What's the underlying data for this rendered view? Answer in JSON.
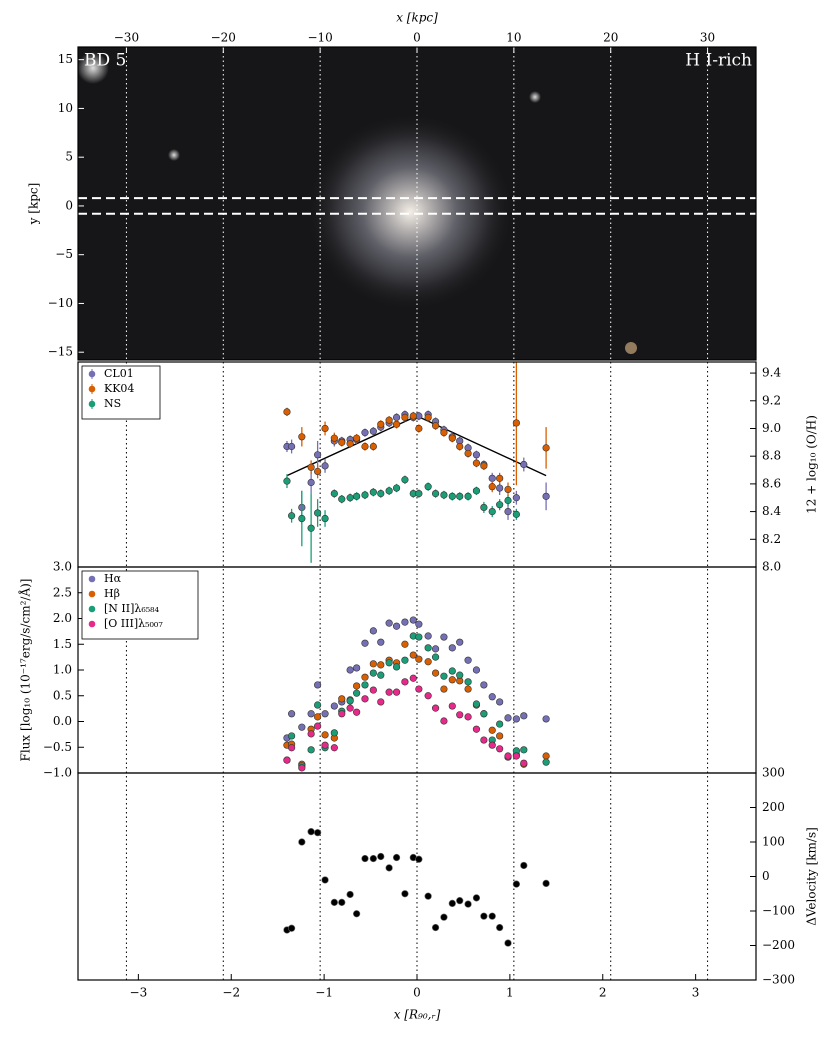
{
  "chart_data": [
    {
      "type": "image",
      "xlabel": "x [kpc]",
      "ylabel": "y [kpc]",
      "annotations": [
        "BD 5",
        "H I-rich"
      ],
      "xlim": [
        -35,
        35
      ],
      "xticks": [
        {
          "value": -30,
          "label": "−30"
        },
        {
          "value": -20,
          "label": "−20"
        },
        {
          "value": -10,
          "label": "−10"
        },
        0,
        10,
        20,
        30
      ],
      "ylim": [
        -15.8,
        16.3
      ],
      "yticks": [
        {
          "value": -15,
          "label": "−15"
        },
        {
          "value": -10,
          "label": "−10"
        },
        {
          "value": -5,
          "label": "−5"
        },
        0,
        5,
        10,
        15
      ],
      "slit_y": [
        -0.8,
        0.8
      ]
    },
    {
      "type": "errorbar",
      "ylabel": "12 + log₁₀ (O/H)",
      "legend": "upper left",
      "xlim": [
        -3.65,
        3.65
      ],
      "ylim": [
        8.0,
        9.48
      ],
      "yticks": [
        {
          "value": 8,
          "label": "8.0"
        },
        8.2,
        8.4,
        8.6,
        8.8,
        {
          "value": 9,
          "label": "9.0"
        },
        9.2,
        9.4
      ],
      "x": [
        -1.4,
        -1.35,
        -1.24,
        -1.14,
        -1.07,
        -0.99,
        -0.89,
        -0.81,
        -0.72,
        -0.65,
        -0.56,
        -0.47,
        -0.39,
        -0.3,
        -0.22,
        -0.13,
        -0.04,
        0.02,
        0.12,
        0.2,
        0.29,
        0.38,
        0.46,
        0.55,
        0.64,
        0.72,
        0.81,
        0.89,
        0.98,
        1.07,
        1.15,
        1.39
      ],
      "series": [
        {
          "name": "CL01",
          "color": "#7570b3",
          "values": [
            8.87,
            8.87,
            8.43,
            8.61,
            8.81,
            8.73,
            8.91,
            8.91,
            8.92,
            8.92,
            8.97,
            8.98,
            9.01,
            9.04,
            9.08,
            9.1,
            9.08,
            9.09,
            9.1,
            9.05,
            8.99,
            8.94,
            8.91,
            8.86,
            8.81,
            8.74,
            8.64,
            8.57,
            8.4,
            8.5,
            8.74,
            8.51
          ],
          "errors": [
            0.04,
            0.05,
            0.12,
            0.08,
            0.1,
            0.05,
            0.04,
            0.03,
            0.03,
            0.03,
            0.03,
            0.03,
            0.03,
            0.03,
            0.03,
            0.03,
            0.03,
            0.03,
            0.03,
            0.03,
            0.03,
            0.03,
            0.03,
            0.03,
            0.03,
            0.03,
            0.04,
            0.05,
            0.06,
            0.05,
            0.05,
            0.1
          ]
        },
        {
          "name": "KK04",
          "color": "#d95f02",
          "values": [
            9.12,
            null,
            8.94,
            8.72,
            8.69,
            9.0,
            8.93,
            8.9,
            8.89,
            8.93,
            8.87,
            8.87,
            9.03,
            9.06,
            9.03,
            9.08,
            9.09,
            9.0,
            9.08,
            9.02,
            8.97,
            8.93,
            8.87,
            8.82,
            8.75,
            8.73,
            8.58,
            8.64,
            8.56,
            9.04,
            null,
            8.86
          ],
          "errors": [
            0.03,
            null,
            0.07,
            0.05,
            0.05,
            0.05,
            0.04,
            0.03,
            0.03,
            0.03,
            0.03,
            0.03,
            0.03,
            0.03,
            0.03,
            0.03,
            0.03,
            0.03,
            0.03,
            0.03,
            0.03,
            0.03,
            0.03,
            0.03,
            0.03,
            0.03,
            0.04,
            0.04,
            0.05,
            0.45,
            null,
            0.15
          ]
        },
        {
          "name": "NS",
          "color": "#1b9e77",
          "values": [
            8.62,
            8.37,
            8.35,
            8.28,
            8.39,
            8.35,
            8.53,
            8.49,
            8.5,
            8.51,
            8.52,
            8.54,
            8.53,
            8.55,
            8.57,
            8.63,
            8.53,
            8.53,
            8.58,
            8.53,
            8.52,
            8.51,
            8.51,
            8.51,
            8.55,
            8.43,
            8.4,
            8.45,
            8.48,
            8.38,
            null,
            null
          ],
          "errors": [
            0.05,
            0.05,
            0.2,
            0.25,
            0.1,
            0.06,
            0.03,
            0.03,
            0.03,
            0.03,
            0.03,
            0.03,
            0.03,
            0.03,
            0.03,
            0.03,
            0.03,
            0.03,
            0.03,
            0.03,
            0.03,
            0.03,
            0.03,
            0.03,
            0.03,
            0.04,
            0.04,
            0.04,
            0.04,
            0.04,
            null,
            null
          ]
        }
      ],
      "fit": {
        "color": "#000000",
        "x": [
          -1.4,
          0,
          1.39
        ],
        "values": [
          8.66,
          9.09,
          8.66
        ]
      }
    },
    {
      "type": "scatter",
      "ylabel": "Flux [log₁₀ (10⁻¹⁷erg/s/cm²/Å)]",
      "legend": "upper left",
      "xlim": [
        -3.65,
        3.65
      ],
      "ylim": [
        -1.0,
        3.0
      ],
      "yticks": [
        {
          "value": -1,
          "label": "−1.0"
        },
        {
          "value": -0.5,
          "label": "−0.5"
        },
        {
          "value": 0,
          "label": "0.0"
        },
        0.5,
        {
          "value": 1,
          "label": "1.0"
        },
        1.5,
        {
          "value": 2,
          "label": "2.0"
        },
        2.5,
        {
          "value": 3,
          "label": "3.0"
        }
      ],
      "x": [
        -1.4,
        -1.35,
        -1.24,
        -1.14,
        -1.07,
        -0.99,
        -0.89,
        -0.81,
        -0.72,
        -0.65,
        -0.56,
        -0.47,
        -0.39,
        -0.3,
        -0.22,
        -0.13,
        -0.04,
        0.02,
        0.12,
        0.2,
        0.29,
        0.38,
        0.46,
        0.55,
        0.64,
        0.72,
        0.81,
        0.89,
        0.98,
        1.07,
        1.15,
        1.39
      ],
      "series": [
        {
          "name": "Hα",
          "color": "#7570b3",
          "values": [
            -0.32,
            0.15,
            -0.11,
            0.15,
            0.71,
            0.15,
            0.3,
            0.38,
            1.0,
            1.04,
            1.52,
            1.76,
            1.54,
            1.91,
            1.85,
            1.93,
            1.97,
            1.89,
            1.66,
            1.41,
            1.64,
            1.43,
            1.54,
            1.19,
            1.0,
            0.71,
            0.48,
            0.38,
            0.07,
            0.05,
            0.11,
            0.05
          ]
        },
        {
          "name": "Hβ",
          "color": "#d95f02",
          "values": [
            -0.46,
            -0.44,
            -0.83,
            -0.15,
            0.09,
            -0.26,
            -0.32,
            0.44,
            0.42,
            0.69,
            0.86,
            1.12,
            1.1,
            1.19,
            1.14,
            1.5,
            1.29,
            1.21,
            1.16,
            0.94,
            0.63,
            0.81,
            0.79,
            0.63,
            0.32,
            0.15,
            -0.17,
            -0.28,
            -0.69,
            -0.65,
            -0.83,
            -0.67
          ]
        },
        {
          "name": "[N II]λ₆₅₈₄",
          "color": "#1b9e77",
          "values": [
            -0.75,
            -0.28,
            -0.86,
            -0.55,
            0.32,
            -0.51,
            -0.22,
            0.2,
            0.4,
            0.55,
            0.71,
            0.94,
            0.9,
            1.14,
            1.06,
            1.19,
            1.66,
            1.64,
            1.43,
            1.25,
            0.88,
            0.98,
            0.9,
            0.77,
            0.34,
            0.15,
            -0.36,
            -0.05,
            -0.69,
            -0.57,
            -0.55,
            -0.79
          ]
        },
        {
          "name": "[O III]λ₅₀₀₇",
          "color": "#e7298a",
          "values": [
            -0.75,
            -0.51,
            -0.9,
            -0.24,
            -0.09,
            -0.46,
            -0.51,
            0.15,
            0.26,
            0.18,
            0.44,
            0.61,
            0.38,
            0.57,
            0.57,
            0.77,
            0.84,
            0.63,
            0.5,
            0.26,
            0.01,
            0.3,
            0.13,
            0.09,
            -0.15,
            -0.36,
            -0.46,
            -0.53,
            -0.67,
            -0.67,
            -0.81,
            null
          ]
        }
      ]
    },
    {
      "type": "scatter",
      "ylabel": "ΔVelocity [km/s]",
      "xlabel": "x [R₉₀,ᵣ]",
      "xlim": [
        -3.65,
        3.65
      ],
      "xticks": [
        {
          "value": -3,
          "label": "−3"
        },
        {
          "value": -2,
          "label": "−2"
        },
        {
          "value": -1,
          "label": "−1"
        },
        0,
        1,
        2,
        3
      ],
      "ylim": [
        -300,
        300
      ],
      "yticks": [
        {
          "value": -300,
          "label": "−300"
        },
        {
          "value": -200,
          "label": "−200"
        },
        {
          "value": -100,
          "label": "−100"
        },
        0,
        100,
        200,
        300
      ],
      "x": [
        -1.4,
        -1.35,
        -1.24,
        -1.14,
        -1.07,
        -0.99,
        -0.89,
        -0.81,
        -0.72,
        -0.65,
        -0.56,
        -0.47,
        -0.39,
        -0.3,
        -0.22,
        -0.13,
        -0.04,
        0.02,
        0.12,
        0.2,
        0.29,
        0.38,
        0.46,
        0.55,
        0.64,
        0.72,
        0.81,
        0.89,
        0.98,
        1.07,
        1.15,
        1.39
      ],
      "series": [
        {
          "color": "#000000",
          "values": [
            -155,
            -150,
            100,
            130,
            127,
            -10,
            -75,
            -75,
            -52,
            -108,
            52,
            52,
            58,
            25,
            55,
            -50,
            55,
            50,
            -57,
            -148,
            -118,
            -78,
            -70,
            -80,
            -62,
            -115,
            -115,
            -148,
            -193,
            -22,
            32,
            -20
          ]
        }
      ]
    }
  ]
}
